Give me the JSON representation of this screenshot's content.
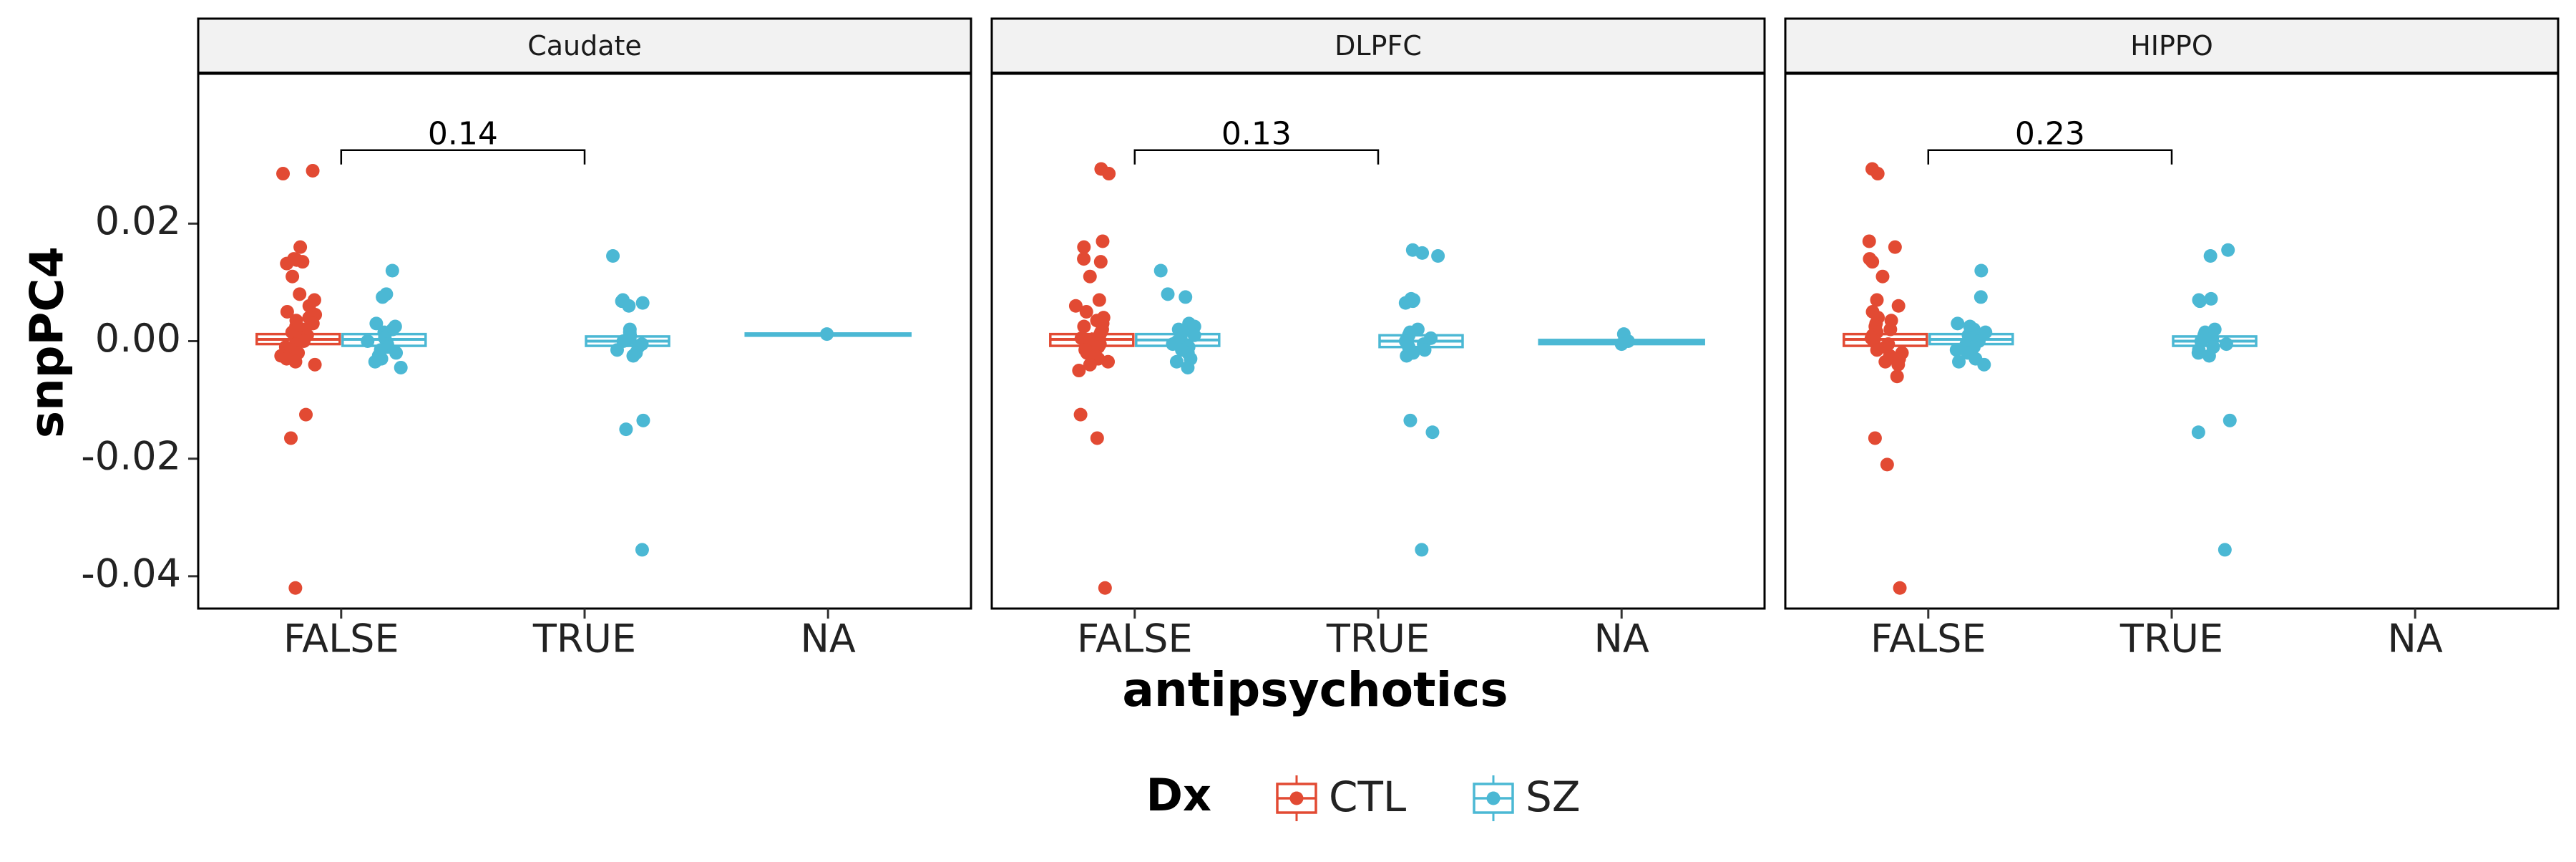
{
  "chart_data": {
    "type": "boxplot",
    "ylabel": "snpPC4",
    "xlabel": "antipsychotics",
    "categories": [
      "FALSE",
      "TRUE",
      "NA"
    ],
    "y_ticks": [
      0.02,
      0.0,
      -0.02,
      -0.04
    ],
    "y_tick_labels": [
      "0.02",
      "0.00",
      "-0.02",
      "-0.04"
    ],
    "ylim": [
      -0.0455,
      0.0455
    ],
    "grid": false,
    "legend": {
      "title": "Dx",
      "position": "bottom",
      "entries": [
        {
          "label": "CTL",
          "color": "#E24A33"
        },
        {
          "label": "SZ",
          "color": "#4BB8D4"
        }
      ]
    },
    "panels": [
      {
        "title": "Caudate",
        "pvalue": "0.14",
        "bracket": {
          "from": "FALSE",
          "to": "TRUE",
          "y": 0.0325
        },
        "boxes": [
          {
            "x": "FALSE",
            "series": "CTL",
            "q1": -0.0005,
            "median": 0.0003,
            "q3": 0.0012,
            "lower": -0.001,
            "upper": 0.0015,
            "points": [
              0.029,
              0.0285,
              0.016,
              0.014,
              0.0138,
              0.0135,
              0.0132,
              0.011,
              0.008,
              0.007,
              0.006,
              0.005,
              0.0045,
              0.004,
              0.0035,
              0.003,
              0.0025,
              0.002,
              0.0015,
              0.001,
              0.0005,
              0.0,
              -0.0005,
              -0.001,
              -0.0015,
              -0.002,
              -0.0025,
              -0.003,
              -0.0035,
              -0.004,
              -0.0125,
              -0.0165,
              -0.042
            ]
          },
          {
            "x": "FALSE",
            "series": "SZ",
            "q1": -0.0008,
            "median": 0.0003,
            "q3": 0.0012,
            "lower": -0.001,
            "upper": 0.0015,
            "points": [
              0.012,
              0.008,
              0.0075,
              0.003,
              0.0025,
              0.002,
              0.0015,
              0.001,
              0.0005,
              0.0,
              -0.0005,
              -0.001,
              -0.0015,
              -0.002,
              -0.0025,
              -0.003,
              -0.0035,
              -0.0045
            ]
          },
          {
            "x": "TRUE",
            "series": "SZ",
            "q1": -0.0008,
            "median": 0.0,
            "q3": 0.0008,
            "lower": -0.001,
            "upper": 0.001,
            "points": [
              0.0145,
              0.007,
              0.0068,
              0.0065,
              0.006,
              0.002,
              0.0015,
              0.001,
              0.0005,
              0.0,
              -0.0005,
              -0.001,
              -0.0015,
              -0.002,
              -0.0025,
              -0.0135,
              -0.015,
              -0.0355
            ]
          },
          {
            "x": "NA",
            "series": "SZ",
            "q1": 0.0011,
            "median": 0.0012,
            "q3": 0.0013,
            "lower": 0.0011,
            "upper": 0.0013,
            "points": [
              0.0012
            ]
          }
        ]
      },
      {
        "title": "DLPFC",
        "pvalue": "0.13",
        "bracket": {
          "from": "FALSE",
          "to": "TRUE",
          "y": 0.0325
        },
        "boxes": [
          {
            "x": "FALSE",
            "series": "CTL",
            "q1": -0.0008,
            "median": 0.0003,
            "q3": 0.0012,
            "lower": -0.001,
            "upper": 0.0015,
            "points": [
              0.0293,
              0.0285,
              0.017,
              0.016,
              0.014,
              0.0135,
              0.011,
              0.007,
              0.006,
              0.005,
              0.004,
              0.0035,
              0.003,
              0.0025,
              0.002,
              0.0015,
              0.001,
              0.0005,
              0.0,
              -0.0005,
              -0.001,
              -0.0015,
              -0.002,
              -0.0025,
              -0.003,
              -0.0035,
              -0.004,
              -0.005,
              -0.0125,
              -0.0165,
              -0.042
            ]
          },
          {
            "x": "FALSE",
            "series": "SZ",
            "q1": -0.0008,
            "median": 0.0002,
            "q3": 0.0012,
            "lower": -0.001,
            "upper": 0.0015,
            "points": [
              0.012,
              0.008,
              0.0075,
              0.003,
              0.0025,
              0.002,
              0.0015,
              0.001,
              0.0005,
              0.0,
              -0.0005,
              -0.001,
              -0.0015,
              -0.002,
              -0.003,
              -0.0035,
              -0.0045
            ]
          },
          {
            "x": "TRUE",
            "series": "SZ",
            "q1": -0.001,
            "median": 0.0,
            "q3": 0.001,
            "lower": -0.0012,
            "upper": 0.0012,
            "points": [
              0.0155,
              0.015,
              0.0145,
              0.0072,
              0.007,
              0.0068,
              0.0065,
              0.002,
              0.0015,
              0.001,
              0.0005,
              0.0,
              -0.0005,
              -0.001,
              -0.0015,
              -0.002,
              -0.0025,
              -0.0135,
              -0.0155,
              -0.0355
            ]
          },
          {
            "x": "NA",
            "series": "SZ",
            "q1": -0.0005,
            "median": -0.0002,
            "q3": 0.0002,
            "lower": -0.0006,
            "upper": 0.0003,
            "points": [
              0.0012,
              0.0,
              -0.0005
            ]
          }
        ]
      },
      {
        "title": "HIPPO",
        "pvalue": "0.23",
        "bracket": {
          "from": "FALSE",
          "to": "TRUE",
          "y": 0.0325
        },
        "boxes": [
          {
            "x": "FALSE",
            "series": "CTL",
            "q1": -0.0008,
            "median": 0.0003,
            "q3": 0.0012,
            "lower": -0.001,
            "upper": 0.0015,
            "points": [
              0.0293,
              0.0285,
              0.017,
              0.016,
              0.014,
              0.0135,
              0.011,
              0.007,
              0.006,
              0.005,
              0.004,
              0.0035,
              0.003,
              0.0025,
              0.002,
              0.0015,
              0.001,
              0.0005,
              0.0,
              -0.0005,
              -0.001,
              -0.0015,
              -0.002,
              -0.0025,
              -0.003,
              -0.0035,
              -0.004,
              -0.006,
              -0.0165,
              -0.021,
              -0.042
            ]
          },
          {
            "x": "FALSE",
            "series": "SZ",
            "q1": -0.0005,
            "median": 0.0003,
            "q3": 0.0012,
            "lower": -0.0008,
            "upper": 0.0015,
            "points": [
              0.012,
              0.0075,
              0.003,
              0.0025,
              0.002,
              0.0015,
              0.001,
              0.0005,
              0.0,
              -0.0005,
              -0.001,
              -0.0015,
              -0.002,
              -0.003,
              -0.0035,
              -0.004
            ]
          },
          {
            "x": "TRUE",
            "series": "SZ",
            "q1": -0.0008,
            "median": 0.0,
            "q3": 0.0008,
            "lower": -0.001,
            "upper": 0.001,
            "points": [
              0.0155,
              0.0145,
              0.0072,
              0.007,
              0.0068,
              0.002,
              0.0015,
              0.001,
              0.0005,
              0.0,
              -0.0005,
              -0.001,
              -0.0015,
              -0.002,
              -0.0025,
              -0.0135,
              -0.0155,
              -0.0355
            ]
          }
        ]
      }
    ]
  }
}
